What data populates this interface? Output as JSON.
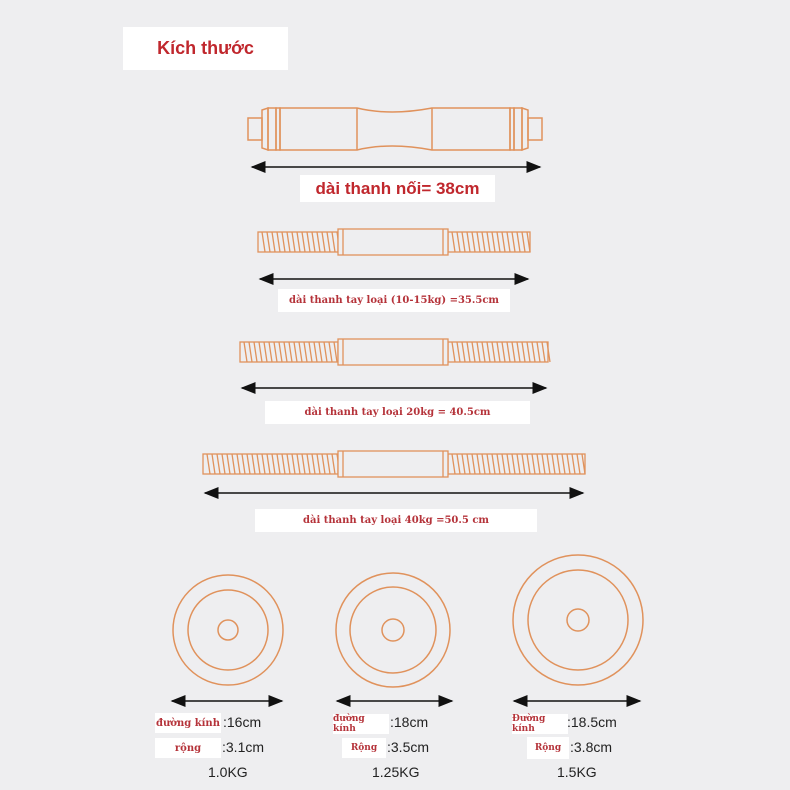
{
  "title": "Kích thước",
  "colors": {
    "accent_text": "#c0272d",
    "drawing_stroke": "#e0925c",
    "background": "#eeeef0"
  },
  "bars": [
    {
      "label": "dài thanh nối= 38cm"
    },
    {
      "label": "dài thanh tay loại (10-15kg) =35.5cm"
    },
    {
      "label": "dài thanh tay loại 20kg = 40.5cm"
    },
    {
      "label": "dài thanh tay loại 40kg =50.5 cm"
    }
  ],
  "plates": [
    {
      "diameter_label": "đường kính",
      "diameter": ":16cm",
      "width_label": "rộng",
      "width": ":3.1cm",
      "weight": "1.0KG"
    },
    {
      "diameter_label": "đường kính",
      "diameter": ":18cm",
      "width_label": "Rộng",
      "width": ":3.5cm",
      "weight": "1.25KG"
    },
    {
      "diameter_label": "Đường kính",
      "diameter": ":18.5cm",
      "width_label": "Rộng",
      "width": ":3.8cm",
      "weight": "1.5KG"
    }
  ]
}
